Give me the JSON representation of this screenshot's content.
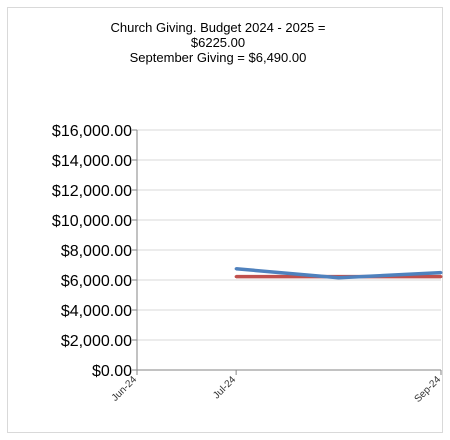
{
  "chart_data": {
    "type": "line",
    "title_lines": [
      "Church Giving. Budget 2024 - 2025 =",
      "$6225.00",
      "September Giving = $6,490.00"
    ],
    "xlabel": "",
    "ylabel": "",
    "x_ticks": [
      "Jun-24",
      "Jul-24",
      "Sep-24"
    ],
    "x_tick_dates": [
      "2024-06-01",
      "2024-07-01",
      "2024-09-01"
    ],
    "y_ticks": [
      "$0.00",
      "$2,000.00",
      "$4,000.00",
      "$6,000.00",
      "$8,000.00",
      "$10,000.00",
      "$12,000.00",
      "$14,000.00",
      "$16,000.00"
    ],
    "ylim": [
      0,
      16000
    ],
    "x": [
      "2024-07-01",
      "2024-08-01",
      "2024-09-01"
    ],
    "series": [
      {
        "values": [
          6225,
          6225,
          6225
        ],
        "color": "#c0504d"
      },
      {
        "values": [
          6750,
          6150,
          6490
        ],
        "color": "#4f81bd"
      }
    ],
    "grid": "horizontal",
    "legend": "none"
  }
}
